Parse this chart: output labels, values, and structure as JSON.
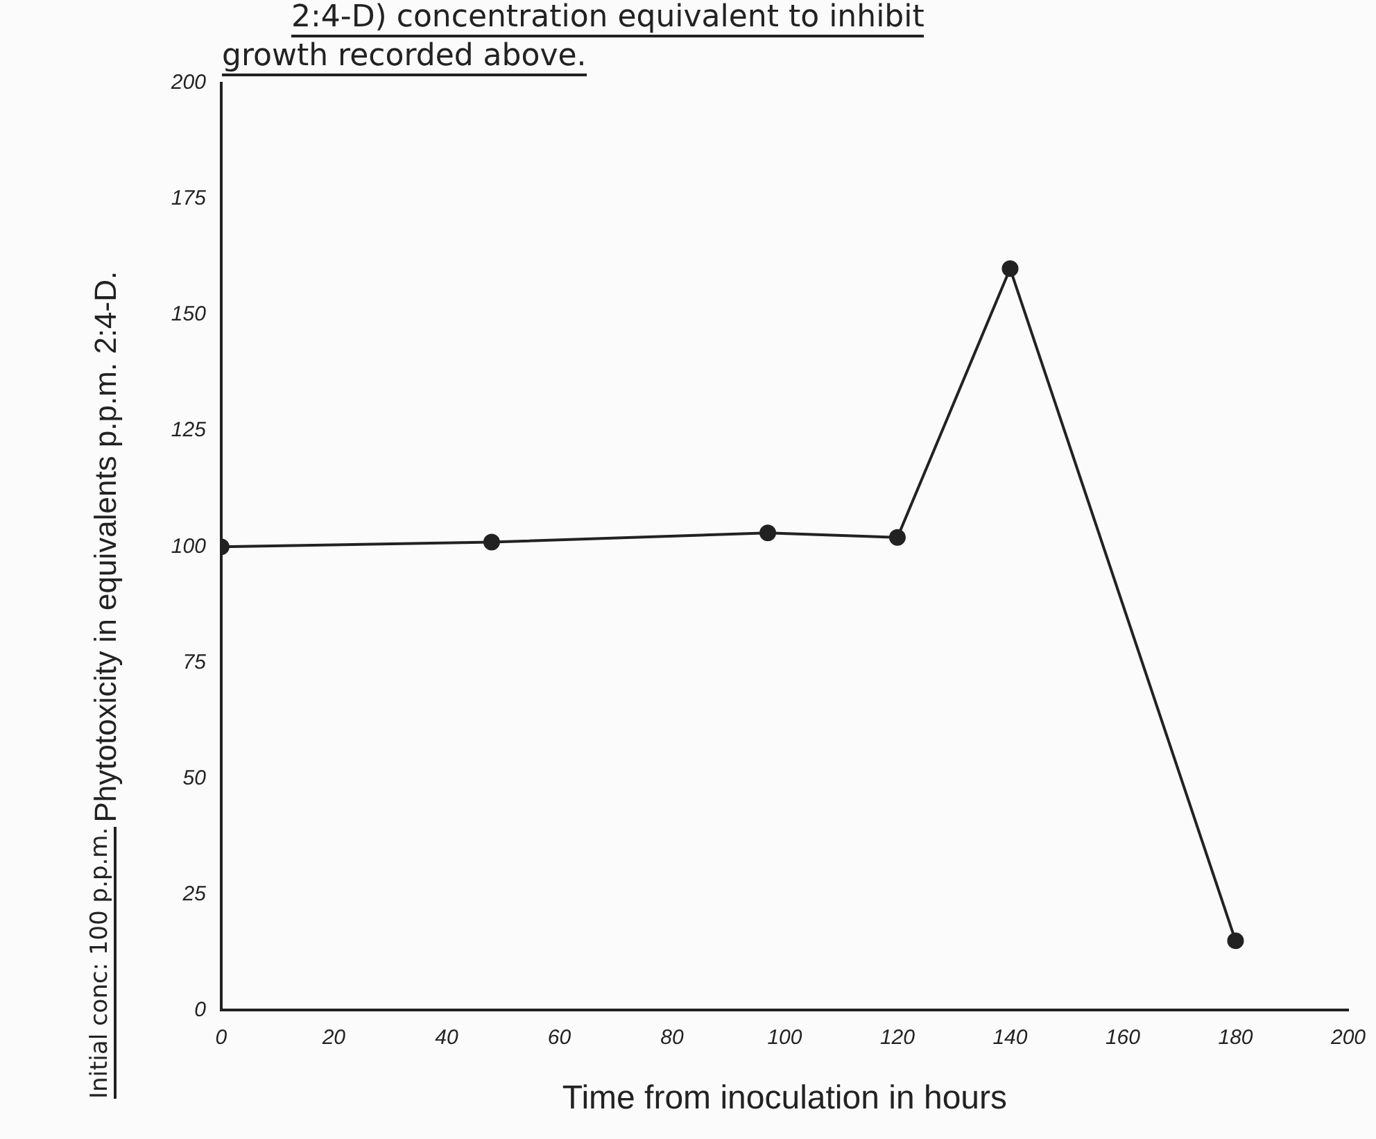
{
  "chart_data": {
    "type": "line",
    "title": "2:4-D) concentration equivalent to inhibit",
    "subtitle": "growth recorded above.",
    "xlabel": "Time from inoculation in hours",
    "ylabel": "Phytotoxicity in equivalents p.p.m. 2:4-D.",
    "annotations": [
      "Initial conc: 100 p.p.m."
    ],
    "x": [
      0,
      48,
      97,
      120,
      140,
      180
    ],
    "values": [
      100,
      101,
      103,
      102,
      160,
      15
    ],
    "color": "#222222",
    "marker": "circle",
    "line_style": "solid",
    "grid": false,
    "legend": false,
    "xlim": [
      0,
      200
    ],
    "xticks": [
      0,
      20,
      40,
      60,
      80,
      100,
      120,
      140,
      160,
      180,
      200
    ],
    "ylim": [
      0,
      200
    ],
    "yticks": [
      0,
      25,
      50,
      75,
      100,
      125,
      150,
      175,
      200
    ]
  }
}
